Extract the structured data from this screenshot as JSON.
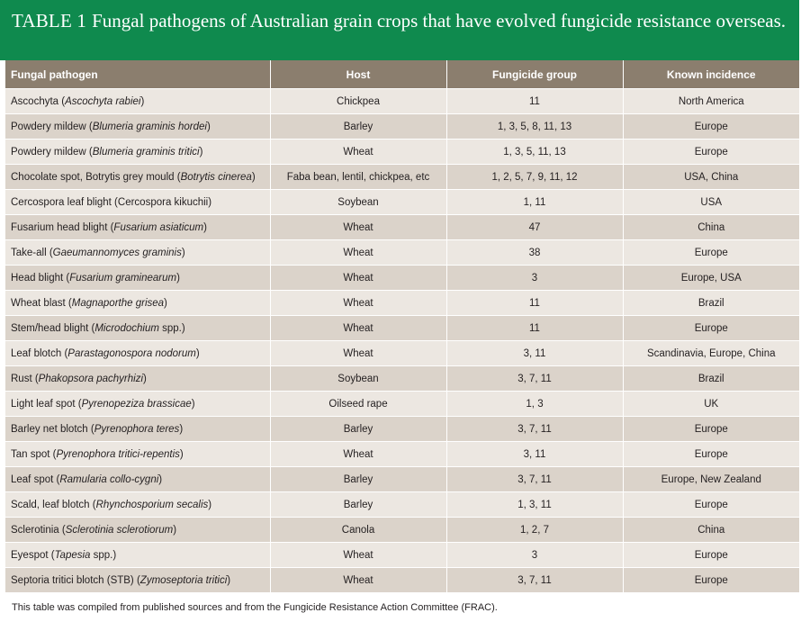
{
  "caption": {
    "label": "TABLE 1",
    "title": "Fungal pathogens of Australian grain crops that have evolved fungicide resistance overseas."
  },
  "headers": [
    "Fungal pathogen",
    "Host",
    "Fungicide group",
    "Known incidence"
  ],
  "rows": [
    {
      "common": "Ascochyta (",
      "species": "Ascochyta rabiei",
      "suffix": ")",
      "host": "Chickpea",
      "group": "11",
      "incidence": "North America"
    },
    {
      "common": "Powdery mildew (",
      "species": "Blumeria graminis hordei",
      "suffix": ")",
      "host": "Barley",
      "group": "1, 3, 5, 8, 11, 13",
      "incidence": "Europe"
    },
    {
      "common": "Powdery mildew (",
      "species": "Blumeria graminis tritici",
      "suffix": ")",
      "host": "Wheat",
      "group": "1, 3, 5, 11, 13",
      "incidence": "Europe"
    },
    {
      "common": "Chocolate spot, Botrytis grey mould (",
      "species": "Botrytis cinerea",
      "suffix": ")",
      "host": "Faba bean, lentil, chickpea, etc",
      "group": "1, 2, 5, 7, 9, 11, 12",
      "incidence": "USA, China"
    },
    {
      "common": "Cercospora leaf blight (Cercospora kikuchii)",
      "species": "",
      "suffix": "",
      "host": "Soybean",
      "group": "1, 11",
      "incidence": "USA"
    },
    {
      "common": "Fusarium head blight (",
      "species": "Fusarium asiaticum",
      "suffix": ")",
      "host": "Wheat",
      "group": "47",
      "incidence": "China"
    },
    {
      "common": "Take-all (",
      "species": "Gaeumannomyces graminis",
      "suffix": ")",
      "host": "Wheat",
      "group": "38",
      "incidence": "Europe"
    },
    {
      "common": "Head blight (",
      "species": "Fusarium graminearum",
      "suffix": ")",
      "host": "Wheat",
      "group": "3",
      "incidence": "Europe, USA"
    },
    {
      "common": "Wheat blast (",
      "species": "Magnaporthe grisea",
      "suffix": ")",
      "host": "Wheat",
      "group": "11",
      "incidence": "Brazil"
    },
    {
      "common": "Stem/head blight (",
      "species": "Microdochium",
      "suffix": " spp.)",
      "host": "Wheat",
      "group": "11",
      "incidence": "Europe"
    },
    {
      "common": "Leaf blotch (",
      "species": "Parastagonospora nodorum",
      "suffix": ")",
      "host": "Wheat",
      "group": "3, 11",
      "incidence": "Scandinavia, Europe, China"
    },
    {
      "common": "Rust (",
      "species": "Phakopsora pachyrhizi",
      "suffix": ")",
      "host": "Soybean",
      "group": "3, 7, 11",
      "incidence": "Brazil"
    },
    {
      "common": "Light leaf spot (",
      "species": "Pyrenopeziza brassicae",
      "suffix": ")",
      "host": "Oilseed rape",
      "group": "1, 3",
      "incidence": "UK"
    },
    {
      "common": "Barley net blotch (",
      "species": "Pyrenophora teres",
      "suffix": ")",
      "host": "Barley",
      "group": "3, 7, 11",
      "incidence": "Europe"
    },
    {
      "common": "Tan spot (",
      "species": "Pyrenophora tritici-repentis",
      "suffix": ")",
      "host": "Wheat",
      "group": "3, 11",
      "incidence": "Europe"
    },
    {
      "common": "Leaf spot (",
      "species": "Ramularia collo-cygni",
      "suffix": ")",
      "host": "Barley",
      "group": "3, 7, 11",
      "incidence": "Europe, New Zealand"
    },
    {
      "common": "Scald, leaf blotch (",
      "species": "Rhynchosporium secalis",
      "suffix": ")",
      "host": "Barley",
      "group": "1, 3, 11",
      "incidence": "Europe"
    },
    {
      "common": "Sclerotinia (",
      "species": "Sclerotinia sclerotiorum",
      "suffix": ")",
      "host": "Canola",
      "group": "1, 2, 7",
      "incidence": "China"
    },
    {
      "common": "Eyespot (",
      "species": "Tapesia",
      "suffix": " spp.)",
      "host": "Wheat",
      "group": "3",
      "incidence": "Europe"
    },
    {
      "common": "Septoria tritici blotch (STB) (",
      "species": "Zymoseptoria tritici",
      "suffix": ")",
      "host": "Wheat",
      "group": "3, 7, 11",
      "incidence": "Europe"
    }
  ],
  "footnote": "This table was compiled from published sources and from the Fungicide Resistance Action Committee (FRAC)."
}
